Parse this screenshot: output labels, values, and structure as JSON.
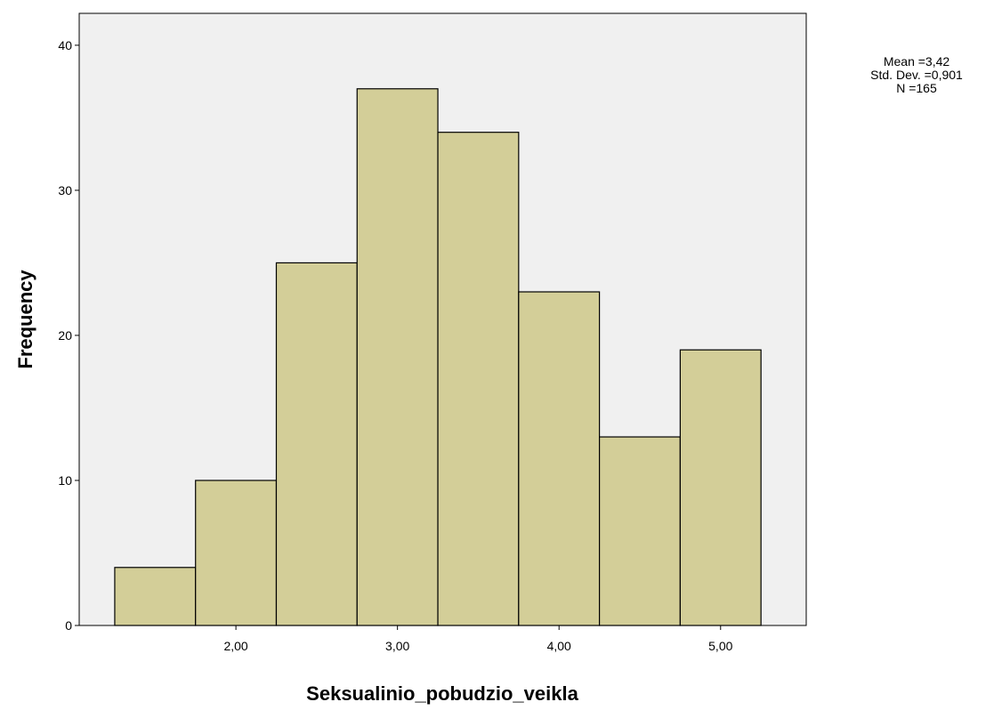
{
  "chart_data": {
    "type": "bar",
    "subtype": "histogram",
    "bins": [
      {
        "x0": 1.25,
        "x1": 1.75,
        "value": 4
      },
      {
        "x0": 1.75,
        "x1": 2.25,
        "value": 10
      },
      {
        "x0": 2.25,
        "x1": 2.75,
        "value": 25
      },
      {
        "x0": 2.75,
        "x1": 3.25,
        "value": 37
      },
      {
        "x0": 3.25,
        "x1": 3.75,
        "value": 34
      },
      {
        "x0": 3.75,
        "x1": 4.25,
        "value": 23
      },
      {
        "x0": 4.25,
        "x1": 4.75,
        "value": 13
      },
      {
        "x0": 4.75,
        "x1": 5.25,
        "value": 19
      }
    ],
    "xlabel": "Seksualinio_pobudzio_veikla",
    "ylabel": "Frequency",
    "xlim": [
      1.03,
      5.53
    ],
    "ylim": [
      0,
      42.2
    ],
    "x_ticks": [
      {
        "value": 2.0,
        "label": "2,00"
      },
      {
        "value": 3.0,
        "label": "3,00"
      },
      {
        "value": 4.0,
        "label": "4,00"
      },
      {
        "value": 5.0,
        "label": "5,00"
      }
    ],
    "y_ticks": [
      {
        "value": 0,
        "label": "0"
      },
      {
        "value": 10,
        "label": "10"
      },
      {
        "value": 20,
        "label": "20"
      },
      {
        "value": 30,
        "label": "30"
      },
      {
        "value": 40,
        "label": "40"
      }
    ],
    "grid": false,
    "legend_position": "top-right",
    "stats": {
      "mean": "Mean =3,42",
      "std_dev": "Std. Dev. =0,901",
      "n": "N =165"
    },
    "colors": {
      "bar_fill": "#d3ce98",
      "bar_stroke": "#000000",
      "plot_background": "#f0f0f0"
    }
  }
}
